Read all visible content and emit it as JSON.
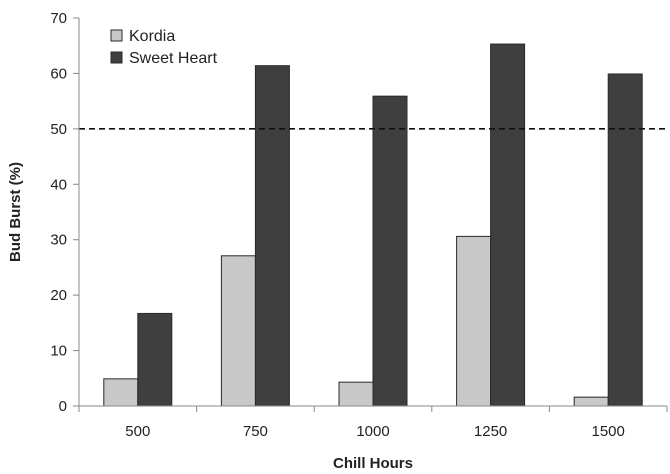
{
  "chart_data": {
    "type": "bar",
    "categories": [
      "500",
      "750",
      "1000",
      "1250",
      "1500"
    ],
    "series": [
      {
        "name": "Kordia",
        "values": [
          4.9,
          27.1,
          4.3,
          30.6,
          1.6
        ],
        "color": "#c8c8c8"
      },
      {
        "name": "Sweet Heart",
        "values": [
          16.7,
          61.4,
          55.9,
          65.3,
          59.9
        ],
        "color": "#3f3f3f"
      }
    ],
    "xlabel": "Chill Hours",
    "ylabel": "Bud Burst (%)",
    "ylim": [
      0,
      70
    ],
    "yticks": [
      "0",
      "10",
      "20",
      "30",
      "40",
      "50",
      "60",
      "70"
    ],
    "reference_line": {
      "value": 50,
      "style": "dashed"
    },
    "legend_position": "top-left",
    "grid": false
  }
}
